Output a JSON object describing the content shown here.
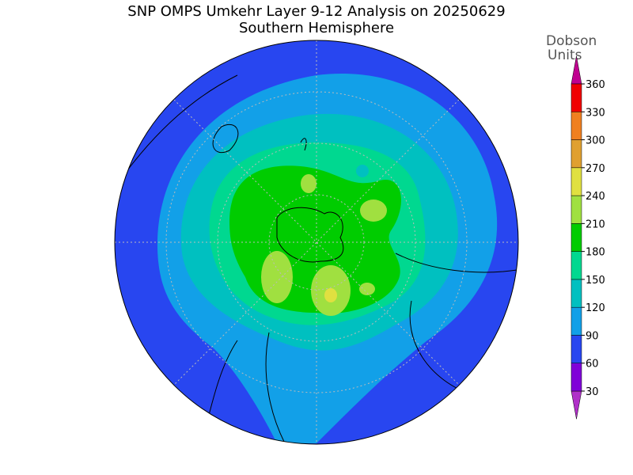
{
  "title": "SNP OMPS Umkehr Layer 9-12 Analysis on 20250629",
  "subtitle": "Southern Hemisphere",
  "colorbar": {
    "label": [
      "Dobson",
      "Units"
    ],
    "ticks": [
      30,
      60,
      90,
      120,
      150,
      180,
      210,
      240,
      270,
      300,
      330,
      360
    ],
    "colors": [
      "#b030c8",
      "#8000d8",
      "#2846f0",
      "#12a0e8",
      "#00c0c0",
      "#00d890",
      "#00cc00",
      "#a0e040",
      "#e0e040",
      "#e0a030",
      "#f08020",
      "#f00000",
      "#c00090"
    ]
  }
}
